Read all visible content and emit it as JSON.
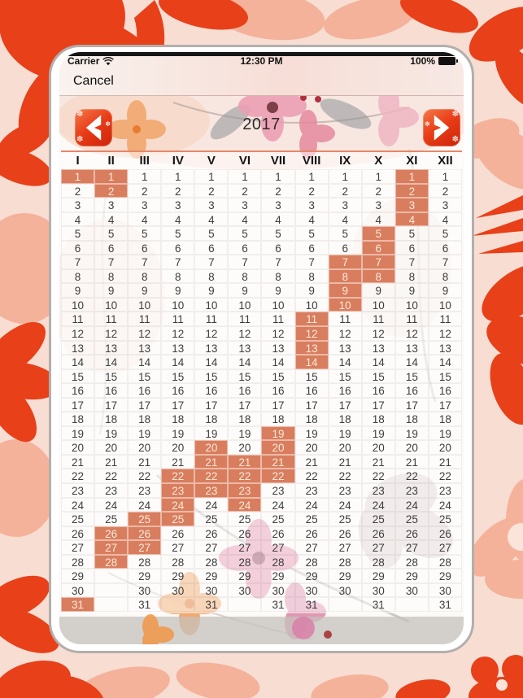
{
  "status_bar": {
    "carrier": "Carrier",
    "wifi_icon": "wifi-icon",
    "time": "12:30 PM",
    "battery_percent": "100%",
    "battery_icon": "battery-icon"
  },
  "nav_bar": {
    "cancel_label": "Cancel"
  },
  "year_header": {
    "year": "2017",
    "prev_icon": "chevron-left-icon",
    "next_icon": "chevron-right-icon"
  },
  "calendar": {
    "month_headers": [
      "I",
      "II",
      "III",
      "IV",
      "V",
      "VI",
      "VII",
      "VIII",
      "IX",
      "X",
      "XI",
      "XII"
    ],
    "days_in_month": [
      31,
      28,
      31,
      30,
      31,
      30,
      31,
      31,
      30,
      31,
      30,
      31
    ],
    "num_rows": 31,
    "highlighted_days": {
      "I": [
        1,
        31
      ],
      "II": [
        1,
        2,
        26,
        27,
        28
      ],
      "III": [
        25,
        26,
        27
      ],
      "IV": [
        22,
        23,
        24,
        25
      ],
      "V": [
        20,
        21,
        22,
        23
      ],
      "VI": [
        21,
        22,
        23,
        24
      ],
      "VII": [
        19,
        20,
        21,
        22
      ],
      "VIII": [
        11,
        12,
        13,
        14
      ],
      "IX": [
        7,
        8,
        9,
        10
      ],
      "X": [
        5,
        6,
        7,
        8
      ],
      "XI": [
        1,
        2,
        3,
        4
      ],
      "XII": []
    }
  },
  "colors": {
    "highlight": "#D97D5F",
    "highlight_text": "#F9EAD7",
    "accent_red": "#E84019",
    "pattern_pink": "#F8DDD2",
    "pattern_salmon": "#F4B29A",
    "header_line": "#E5876B"
  }
}
